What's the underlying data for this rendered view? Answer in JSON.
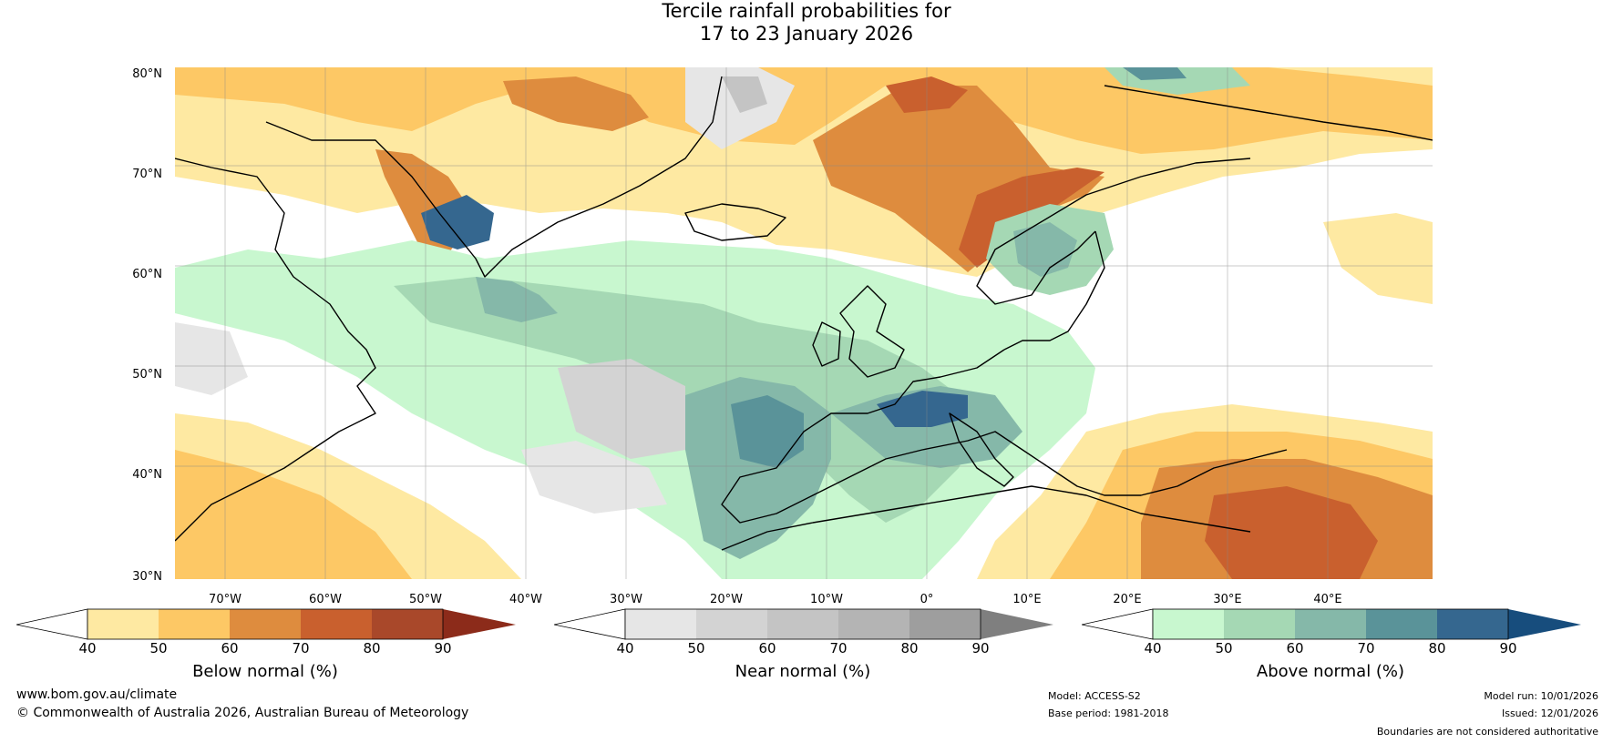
{
  "title": {
    "line1": "Tercile rainfall probabilities for",
    "line2": "17 to 23 January 2026"
  },
  "map": {
    "lat_labels": [
      "80°N",
      "70°N",
      "60°N",
      "50°N",
      "40°N",
      "30°N"
    ],
    "lon_labels": [
      "70°W",
      "60°W",
      "50°W",
      "40°W",
      "30°W",
      "20°W",
      "10°W",
      "0°",
      "10°E",
      "20°E",
      "30°E",
      "40°E"
    ],
    "extent": {
      "lon_min": -75,
      "lon_max": 50,
      "lat_min": 30,
      "lat_max": 81
    }
  },
  "colorbars": [
    {
      "title": "Below normal (%)",
      "ticks": [
        "40",
        "50",
        "60",
        "70",
        "80",
        "90"
      ],
      "colors": [
        "#ffffff",
        "#fee9a2",
        "#fdc865",
        "#de8c3e",
        "#c9602e",
        "#a9482a",
        "#8c2b1a"
      ]
    },
    {
      "title": "Near normal (%)",
      "ticks": [
        "40",
        "50",
        "60",
        "70",
        "80",
        "90"
      ],
      "colors": [
        "#ffffff",
        "#e6e6e6",
        "#d3d3d3",
        "#c4c4c4",
        "#b4b4b4",
        "#9e9e9e",
        "#7f7f7f"
      ]
    },
    {
      "title": "Above normal (%)",
      "ticks": [
        "40",
        "50",
        "60",
        "70",
        "80",
        "90"
      ],
      "colors": [
        "#ffffff",
        "#c8f7cf",
        "#a5d8b4",
        "#85b8a9",
        "#5a9399",
        "#35678f",
        "#174d7d"
      ]
    }
  ],
  "footer": {
    "website": "www.bom.gov.au/climate",
    "copyright": "© Commonwealth of Australia 2026, Australian Bureau of Meteorology",
    "model": "Model: ACCESS-S2",
    "base_period": "Base period: 1981-2018",
    "model_run": "Model run: 10/01/2026",
    "issued": "Issued: 12/01/2026",
    "disclaimer": "Boundaries are not considered authoritative"
  }
}
